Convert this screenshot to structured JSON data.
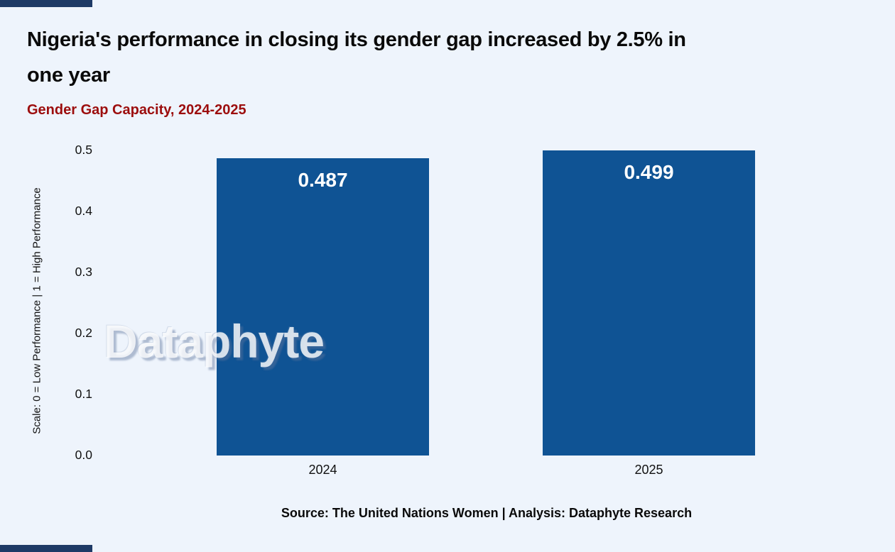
{
  "page": {
    "title": "Nigeria's performance in closing its gender gap increased by 2.5% in\none year",
    "subtitle": "Gender Gap Capacity, 2024-2025",
    "source": "Source: The United Nations Women | Analysis: Dataphyte Research",
    "watermark": "Dataphyte"
  },
  "colors": {
    "background": "#EEF4FC",
    "bar": "#0F5394",
    "title_text": "#0A0A0A",
    "subtitle_text": "#9C0D0D",
    "axis_text": "#111111",
    "bar_value_text": "#FFFFFF",
    "accent_strip": "#1E3A66"
  },
  "chart_data": {
    "type": "bar",
    "title": "Gender Gap Capacity, 2024-2025",
    "categories": [
      "2024",
      "2025"
    ],
    "values": [
      0.487,
      0.499
    ],
    "value_labels": [
      "0.487",
      "0.499"
    ],
    "xlabel": "",
    "ylabel": "Scale: 0 = Low Performance | 1 = High Performance",
    "ylim": [
      0,
      0.5
    ],
    "yticks": [
      0,
      0.1,
      0.2,
      0.3,
      0.4,
      0.5
    ],
    "ytick_labels": [
      "0.0",
      "0.1",
      "0.2",
      "0.3",
      "0.4",
      "0.5"
    ],
    "grid": false,
    "legend": false,
    "value_label_position": "inside-top"
  }
}
